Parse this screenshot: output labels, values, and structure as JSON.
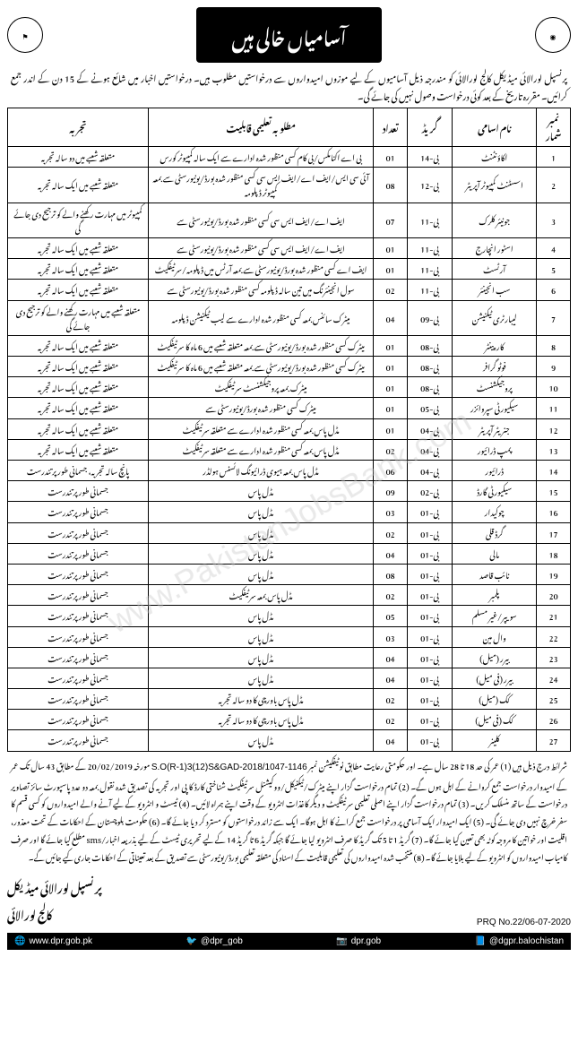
{
  "header": {
    "title": "آسامیاں خالی ہیں",
    "logo_left": "⚑",
    "logo_right": "◉"
  },
  "intro": "پرنسپل لورالائی میڈیکل کالج لورالائی کو مندرجہ ذیل آسامیوں کے لیے موزوں امیدواروں سے درخواستیں مطلوب ہیں۔ درخواستیں اخبار میں شائع ہونے کے 15 دن کے اندر جمع کرائیں۔ مقررہ تاریخ کے بعد کوئی درخواست وصول نہیں کی جائے گی۔",
  "columns": {
    "sr": "نمبر شمار",
    "post": "نام اسامی",
    "grade": "گریڈ",
    "qty": "تعداد",
    "qual": "مطلوبہ تعلیمی قابلیت",
    "exp": "تجربہ"
  },
  "rows": [
    {
      "sr": "1",
      "post": "اکاؤنٹنٹ",
      "grade": "بی-14",
      "qty": "01",
      "qual": "بی اے اکنامکس/بی کام کسی منظور شدہ ادارے سے ایک سالہ کمپیوٹر کورس",
      "exp": "متعلقہ شعبے میں دو سالہ تجربہ"
    },
    {
      "sr": "2",
      "post": "اسسٹنٹ کمپیوٹر آپریٹر",
      "grade": "بی-12",
      "qty": "08",
      "qual": "آئی سی ایس/ایف اے/ایف ایس سی کسی منظور شدہ بورڈ/یونیورسٹی سے بمعہ کمپیوٹر ڈپلومہ",
      "exp": "متعلقہ شعبے میں ایک سالہ تجربہ"
    },
    {
      "sr": "3",
      "post": "جونیئر کلرک",
      "grade": "بی-11",
      "qty": "07",
      "qual": "ایف اے/ایف ایس سی کسی منظور شدہ بورڈ/یونیورسٹی سے",
      "exp": "کمپیوٹر میں مہارت رکھنے والے کو ترجیح دی جائے گی"
    },
    {
      "sr": "4",
      "post": "اسٹور انچارج",
      "grade": "بی-11",
      "qty": "01",
      "qual": "ایف اے/ایف ایس سی کسی منظور شدہ بورڈ/یونیورسٹی سے",
      "exp": "متعلقہ شعبے میں ایک سالہ تجربہ"
    },
    {
      "sr": "5",
      "post": "آرٹسٹ",
      "grade": "بی-11",
      "qty": "01",
      "qual": "ایف اے کسی منظور شدہ بورڈ/یونیورسٹی سے بمعہ آرٹس میں ڈپلومہ/سرٹیفکیٹ",
      "exp": "متعلقہ شعبے میں ایک سالہ تجربہ"
    },
    {
      "sr": "6",
      "post": "سب انجینئر",
      "grade": "بی-11",
      "qty": "02",
      "qual": "سول انجینئرنگ میں تین سالہ ڈپلومہ کسی منظور شدہ بورڈ/یونیورسٹی سے",
      "exp": "متعلقہ شعبے میں ایک سالہ تجربہ"
    },
    {
      "sr": "7",
      "post": "لیبارٹری ٹیکنیشن",
      "grade": "بی-09",
      "qty": "04",
      "qual": "میٹرک سائنس بمعہ کسی منظور شدہ ادارے سے لیب ٹیکنیشن ڈپلومہ",
      "exp": "متعلقہ شعبے میں مہارت رکھنے والے کو ترجیح دی جائے گی"
    },
    {
      "sr": "8",
      "post": "کارپینٹر",
      "grade": "بی-08",
      "qty": "01",
      "qual": "میٹرک کسی منظور شدہ بورڈ/یونیورسٹی سے بمعہ متعلقہ شعبے میں 6 ماہ کا سرٹیفکیٹ",
      "exp": "متعلقہ شعبے میں ایک سالہ تجربہ"
    },
    {
      "sr": "9",
      "post": "فوٹو گرافر",
      "grade": "بی-08",
      "qty": "01",
      "qual": "میٹرک کسی منظور شدہ بورڈ/یونیورسٹی سے بمعہ متعلقہ شعبے میں 6 ماہ کا سرٹیفکیٹ",
      "exp": "متعلقہ شعبے میں ایک سالہ تجربہ"
    },
    {
      "sr": "10",
      "post": "پروجیکشنسٹ",
      "grade": "بی-08",
      "qty": "01",
      "qual": "میٹرک بمعہ پروجیکشنسٹ سرٹیفکیٹ",
      "exp": "متعلقہ شعبے میں ایک سالہ تجربہ"
    },
    {
      "sr": "11",
      "post": "سیکیورٹی سپروائزر",
      "grade": "بی-05",
      "qty": "01",
      "qual": "میٹرک کسی منظور شدہ بورڈ/یونیورسٹی سے",
      "exp": "متعلقہ شعبے میں ایک سالہ تجربہ"
    },
    {
      "sr": "12",
      "post": "جنریٹر آپریٹر",
      "grade": "بی-04",
      "qty": "01",
      "qual": "مڈل پاس بمعہ کسی منظور شدہ ادارے سے متعلقہ سرٹیفکیٹ",
      "exp": "متعلقہ شعبے میں ایک سالہ تجربہ"
    },
    {
      "sr": "13",
      "post": "پمپ ڈرائیور",
      "grade": "بی-04",
      "qty": "02",
      "qual": "مڈل پاس بمعہ کسی منظور شدہ ادارے سے متعلقہ سرٹیفکیٹ",
      "exp": "متعلقہ شعبے میں ایک سالہ تجربہ"
    },
    {
      "sr": "14",
      "post": "ڈرائیور",
      "grade": "بی-04",
      "qty": "06",
      "qual": "مڈل پاس بمعہ ہیوی ڈرائیونگ لائسنس ہولڈر",
      "exp": "پانچ سالہ تجربہ، جسمانی طور پر تندرست"
    },
    {
      "sr": "15",
      "post": "سیکیورٹی گارڈ",
      "grade": "بی-02",
      "qty": "09",
      "qual": "مڈل پاس",
      "exp": "جسمانی طور پر تندرست"
    },
    {
      "sr": "16",
      "post": "چوکیدار",
      "grade": "بی-01",
      "qty": "03",
      "qual": "مڈل پاس",
      "exp": "جسمانی طور پر تندرست"
    },
    {
      "sr": "17",
      "post": "گرڈ قلی",
      "grade": "بی-01",
      "qty": "02",
      "qual": "مڈل پاس",
      "exp": "جسمانی طور پر تندرست"
    },
    {
      "sr": "18",
      "post": "مالی",
      "grade": "بی-01",
      "qty": "04",
      "qual": "مڈل پاس",
      "exp": "جسمانی طور پر تندرست"
    },
    {
      "sr": "19",
      "post": "نائب قاصد",
      "grade": "بی-01",
      "qty": "08",
      "qual": "مڈل پاس",
      "exp": "جسمانی طور پر تندرست"
    },
    {
      "sr": "20",
      "post": "پلمبر",
      "grade": "بی-01",
      "qty": "02",
      "qual": "مڈل پاس بمعہ سرٹیفکیٹ",
      "exp": "جسمانی طور پر تندرست"
    },
    {
      "sr": "21",
      "post": "سویپر/غیر مسلم",
      "grade": "بی-01",
      "qty": "05",
      "qual": "مڈل پاس",
      "exp": "جسمانی طور پر تندرست"
    },
    {
      "sr": "22",
      "post": "وال مین",
      "grade": "بی-01",
      "qty": "03",
      "qual": "مڈل پاس",
      "exp": "جسمانی طور پر تندرست"
    },
    {
      "sr": "23",
      "post": "بیرر (میل)",
      "grade": "بی-01",
      "qty": "04",
      "qual": "مڈل پاس",
      "exp": "جسمانی طور پر تندرست"
    },
    {
      "sr": "24",
      "post": "بیرر (فی میل)",
      "grade": "بی-01",
      "qty": "04",
      "qual": "مڈل پاس",
      "exp": "جسمانی طور پر تندرست"
    },
    {
      "sr": "25",
      "post": "کک (میل)",
      "grade": "بی-01",
      "qty": "02",
      "qual": "مڈل پاس باورچی کا دو سالہ تجربہ",
      "exp": "جسمانی طور پر تندرست"
    },
    {
      "sr": "26",
      "post": "کک (فی میل)",
      "grade": "بی-01",
      "qty": "02",
      "qual": "مڈل پاس باورچی کا دو سالہ تجربہ",
      "exp": "جسمانی طور پر تندرست"
    },
    {
      "sr": "27",
      "post": "کلینر",
      "grade": "بی-01",
      "qty": "04",
      "qual": "مڈل پاس",
      "exp": "جسمانی طور پر تندرست"
    }
  ],
  "terms_prefix": "شرائط درج ذیل ہیں (1) عمر کی حد 18 تا 28 سال ہے۔ اور حکومتی رعایت مطابق نوٹیفکیشن نمبر ",
  "notification_no": "S.O(R-1)3(12)S&GAD-2018/1047-1146",
  "terms_body": " مورخہ 20/02/2019 کے مطابق 43 سال تک عمر کے امیدوار درخواست جمع کروانے کے اہل ہوں گے۔ (2) تمام درخواست گزار اپنے میٹرک/ٹیکنیکل/ووکیشنل سرٹیفکیٹ شناختی کارڈ کا پی اور تجربہ کی تصدیق شدہ نقول بمعہ دو عدد پاسپورٹ سائز تصاویر درخواست کے ساتھ منسلک کریں۔ (3) تمام درخواست گزار اپنے اصلی تعلیمی سرٹیفکیٹ و دیگر کاغذات انٹرویو کے وقت اپنے ہمراہ لائیں۔ (4) ٹیسٹ و انٹرویو کے لیے آنے والے امیدواروں کو کسی قسم کا سفر خرچ نہیں دی جائے گی۔ (5) ایک امیدوار ایک آسامی پر درخواست جمع کرانے کا اہل ہوگا۔ ایک سے زائد درخواستوں کو مسترد کر دیا جائے گا۔ (6) حکومت بلوچستان کے احکامات کے تحت معذور، اقلیت اور خواتین کا مروجہ کوٹہ بھی تعین کیا جائے گا۔ (7) گریڈ 1 تا 5 تک گریڈ کا صرف انٹرویو لیا جائے گا جبکہ گریڈ 6 تا گریڈ 14 کے لیے تحریری ٹیسٹ کے لیے بذریعہ اخبار/sms مطلع کیا جائے گا اور صرف کامیاب امیدواروں کو انٹرویو کے لیے بلایا جائے گا۔ (8) منتخب شدہ امیدواروں کی تعلیمی قابلیت کے اسناد کی متعلقہ تعلیمی بورڈ/یونیورسٹی سے تصدیق کے بعد تعیناتی کے احکامات جاری کیے جائیں گے۔",
  "principal": "پرنسپل لورالائی میڈیکل",
  "principal2": "کالج لورالائی",
  "prq": "PRQ No.22/06-07-2020",
  "links": {
    "web": "www.dpr.gob.pk",
    "twitter": "@dpr_gob",
    "instagram": "dpr.gob",
    "facebook": "@dgpr.balochistan"
  },
  "watermark": "www.PakistanJobsBank.com"
}
